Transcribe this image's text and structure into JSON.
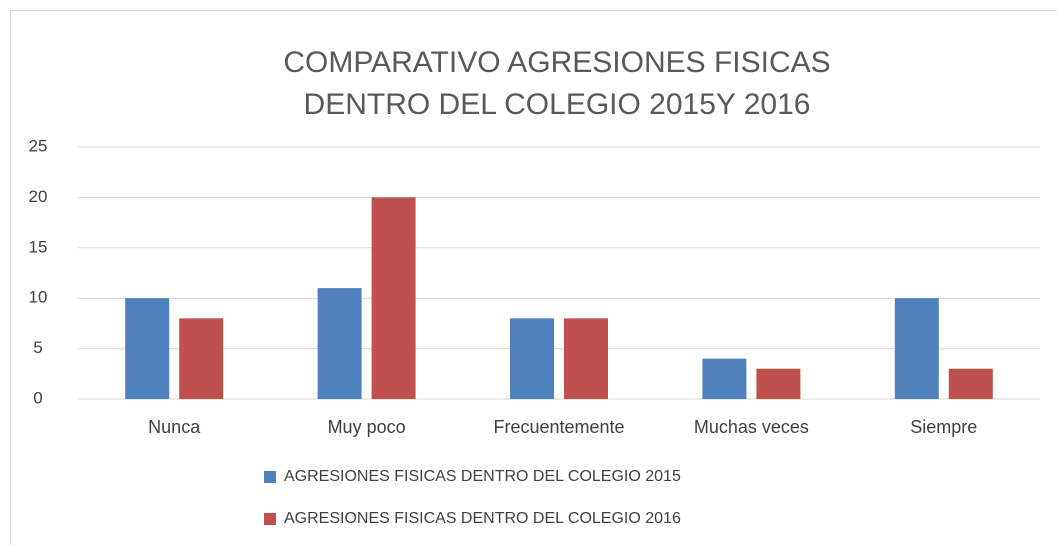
{
  "chart_data": {
    "type": "bar",
    "title": [
      "COMPARATIVO AGRESIONES FISICAS",
      "DENTRO DEL COLEGIO 2015Y 2016"
    ],
    "categories": [
      "Nunca",
      "Muy poco",
      "Frecuentemente",
      "Muchas veces",
      "Siempre"
    ],
    "series": [
      {
        "name": "AGRESIONES FISICAS DENTRO DEL COLEGIO 2015",
        "color": "#4f81bd",
        "values": [
          10,
          11,
          8,
          4,
          10
        ]
      },
      {
        "name": "AGRESIONES FISICAS DENTRO DEL COLEGIO 2016",
        "color": "#c0504d",
        "values": [
          8,
          20,
          8,
          3,
          3
        ]
      }
    ],
    "ylim": [
      0,
      25
    ],
    "yticks": [
      0,
      5,
      10,
      15,
      20,
      25
    ],
    "grid": true,
    "legend": "bottom"
  }
}
